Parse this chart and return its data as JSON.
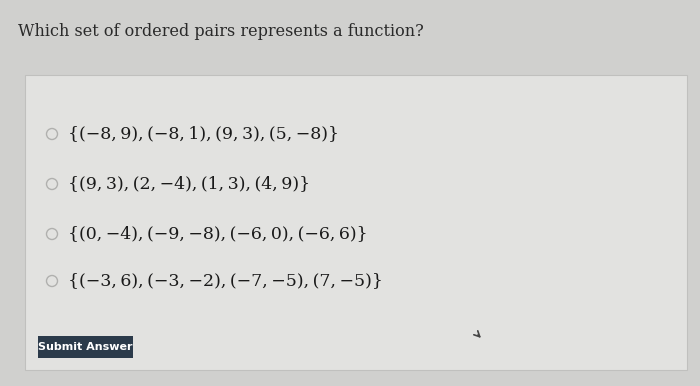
{
  "question": "Which set of ordered pairs represents a function?",
  "options": [
    "{(−8, 9), (−8, 1), (9, 3), (5, −8)}",
    "{(9, 3), (2, −4), (1, 3), (4, 9)}",
    "{(0, −4), (−9, −8), (−6, 0), (−6, 6)}",
    "{(−3, 6), (−3, −2), (−7, −5), (7, −5)}"
  ],
  "bg_outer": "#d0d0ce",
  "bg_box": "#e2e2e0",
  "box_edge": "#c0c0be",
  "question_color": "#2a2a2a",
  "option_color": "#1a1a1a",
  "circle_edge": "#b0b0ae",
  "circle_face": "#e2e2e0",
  "button_bg": "#2b3a4a",
  "button_text": "Submit Answer",
  "button_text_color": "#ffffff",
  "question_fontsize": 11.5,
  "option_fontsize": 12.5,
  "button_fontsize": 8.0
}
